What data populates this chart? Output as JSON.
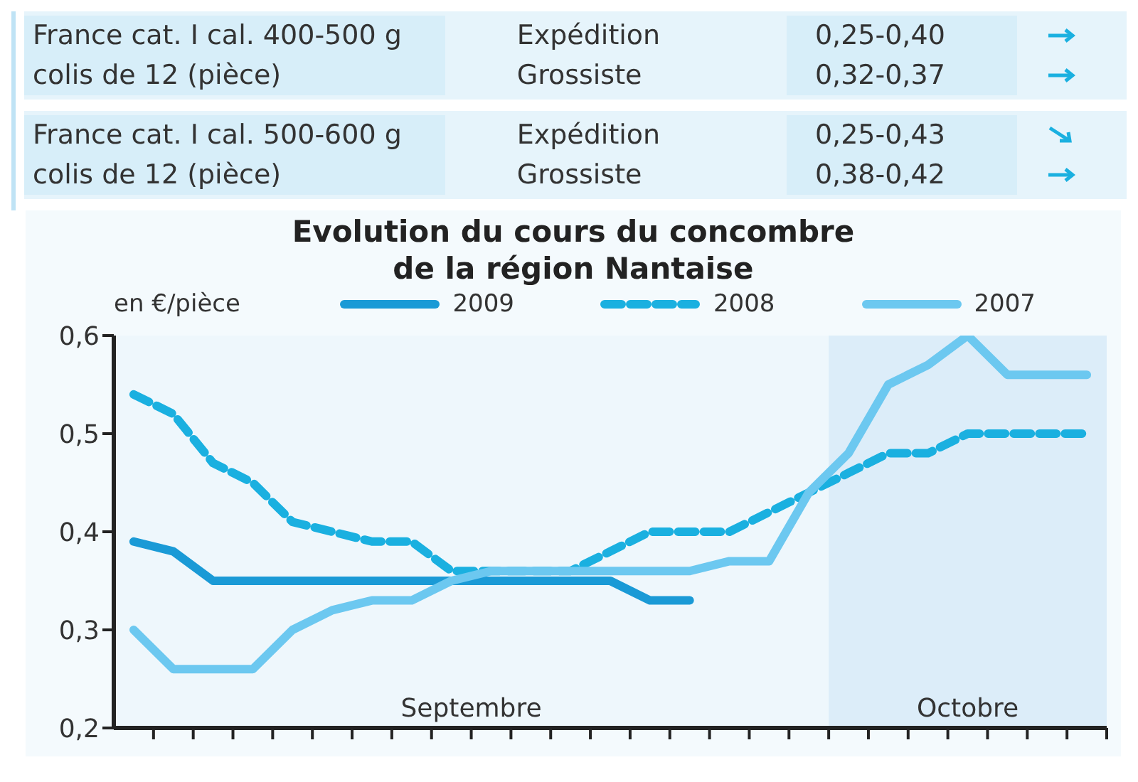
{
  "chart_data": {
    "type": "line",
    "title": "Evolution du cours du concombre\nde la région Nantaise",
    "ylabel": "en €/pièce",
    "annotations": [
      "France cat. I cal. 400-500 g colis de 12 (pièce)",
      "Expédition",
      "Grossiste",
      "0,25-0,40",
      "0,32-0,37",
      "France cat. I cal. 500-600 g colis de 12 (pièce)",
      "Expédition",
      "Grossiste",
      "0,25-0,43",
      "0,38-0,42",
      "Septembre",
      "Octobre"
    ],
    "categories": [
      null,
      null,
      null,
      null,
      null,
      null,
      null,
      null,
      null,
      null,
      null,
      null,
      null,
      null,
      null,
      null,
      null,
      null,
      null,
      null,
      null,
      null,
      null,
      null,
      null
    ],
    "series": [
      {
        "name": "2009",
        "color": "#1a9ad6",
        "line_style": "solid",
        "values": [
          0.39,
          0.38,
          0.35,
          0.35,
          0.35,
          0.35,
          0.35,
          0.35,
          0.35,
          0.35,
          0.35,
          0.35,
          0.35,
          0.33,
          0.33,
          null,
          null,
          null,
          null,
          null,
          null,
          null,
          null,
          null,
          null
        ]
      },
      {
        "name": "2008",
        "color": "#1ab0e0",
        "line_style": "dashed",
        "values": [
          0.54,
          0.52,
          0.47,
          0.45,
          0.41,
          0.4,
          0.39,
          0.39,
          0.36,
          0.36,
          0.36,
          0.36,
          0.38,
          0.4,
          0.4,
          0.4,
          0.42,
          0.44,
          0.46,
          0.48,
          0.48,
          0.5,
          0.5,
          0.5,
          0.5
        ]
      },
      {
        "name": "2007",
        "color": "#6cc8f0",
        "line_style": "solid",
        "values": [
          0.3,
          0.26,
          0.26,
          0.26,
          0.3,
          0.32,
          0.33,
          0.33,
          0.35,
          0.36,
          0.36,
          0.36,
          0.36,
          0.36,
          0.36,
          0.37,
          0.37,
          0.44,
          0.48,
          0.55,
          0.57,
          0.6,
          0.56,
          0.56,
          0.56
        ]
      }
    ],
    "ylim": [
      0.2,
      0.6
    ],
    "yticks": [
      {
        "value": 0.2,
        "label": "0,2"
      },
      {
        "value": 0.3,
        "label": "0,3"
      },
      {
        "value": 0.4,
        "label": "0,4"
      },
      {
        "value": 0.5,
        "label": "0,5"
      },
      {
        "value": 0.6,
        "label": "0,6"
      }
    ],
    "legend": "top",
    "grid": false,
    "marker": "none"
  }
}
